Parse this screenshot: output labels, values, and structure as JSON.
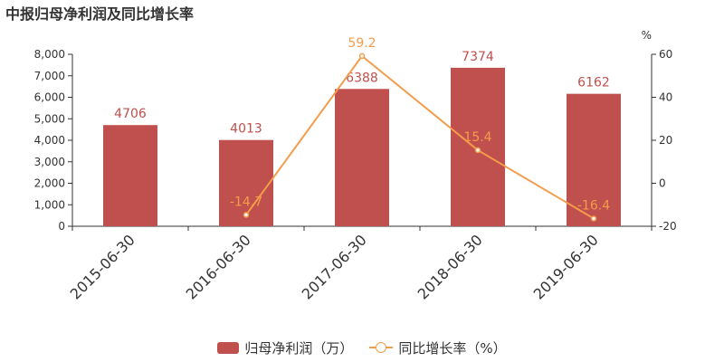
{
  "title": "中报归母净利润及同比增长率",
  "colors": {
    "bar": "#c0504d",
    "line": "#f39c4b",
    "axis": "#333333",
    "text": "#333333"
  },
  "chart_data": {
    "type": "bar",
    "categories": [
      "2015-06-30",
      "2016-06-30",
      "2017-06-30",
      "2018-06-30",
      "2019-06-30"
    ],
    "series": [
      {
        "name": "归母净利润（万）",
        "type": "bar",
        "axis": "left",
        "values": [
          4706,
          4013,
          6388,
          7374,
          6162
        ],
        "labels": [
          "4706",
          "4013",
          "6388",
          "7374",
          "6162"
        ]
      },
      {
        "name": "同比增长率（%）",
        "type": "line",
        "axis": "right",
        "values": [
          null,
          -14.7,
          59.2,
          15.4,
          -16.4
        ],
        "labels": [
          "",
          "-14.7",
          "59.2",
          "15.4",
          "-16.4"
        ]
      }
    ],
    "y_left": {
      "ylim": [
        0,
        8000
      ],
      "ticks": [
        "0",
        "1,000",
        "2,000",
        "3,000",
        "4,000",
        "5,000",
        "6,000",
        "7,000",
        "8,000"
      ]
    },
    "y_right": {
      "ylim": [
        -20,
        60
      ],
      "ticks": [
        "-20",
        "0",
        "20",
        "40",
        "60"
      ],
      "unit": "%"
    },
    "legend_position": "bottom-center",
    "grid": false
  },
  "legend": {
    "bar_label": "归母净利润（万）",
    "line_label": "同比增长率（%）"
  }
}
